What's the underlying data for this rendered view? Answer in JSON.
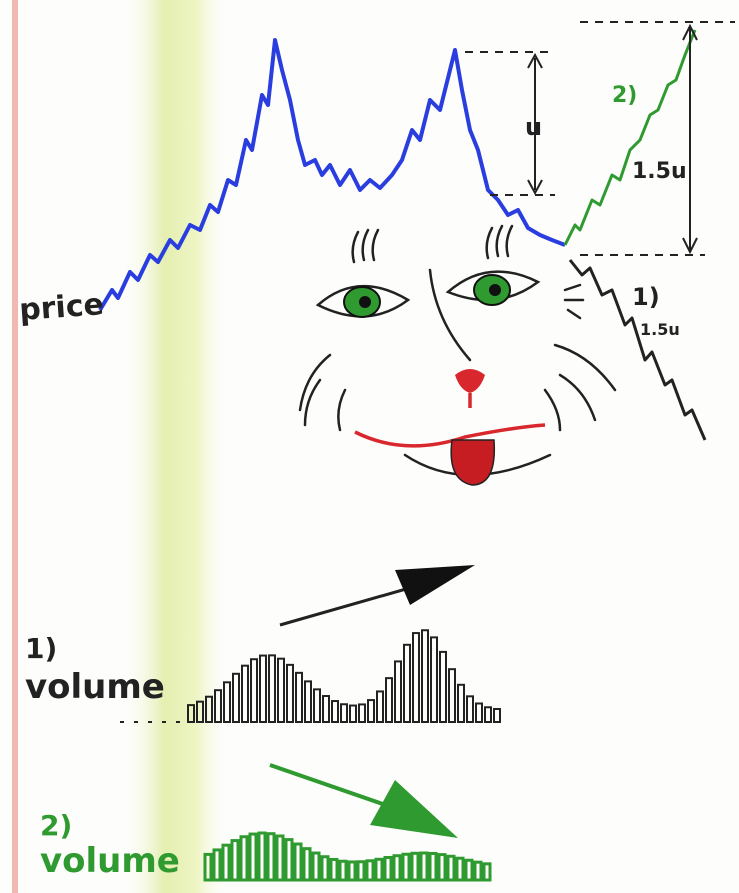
{
  "labels": {
    "price": "price",
    "u": "u",
    "target_up": "1.5u",
    "up_scenario": "2)",
    "down_scenario": "1)",
    "target_down": "1.5u"
  },
  "volume_1": {
    "number": "1)",
    "label": "volume"
  },
  "volume_2": {
    "number": "2)",
    "label": "volume"
  }
}
